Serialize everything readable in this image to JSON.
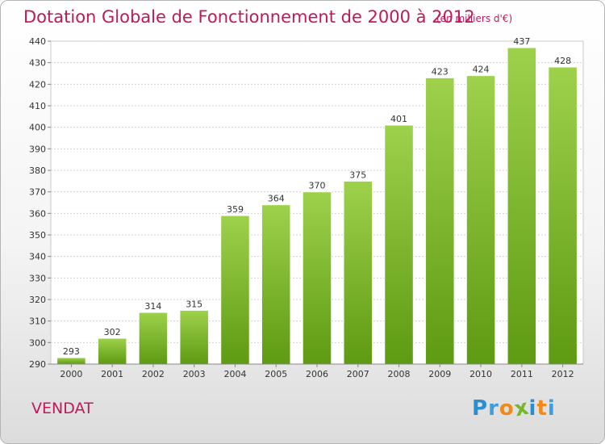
{
  "chart_data": {
    "type": "bar",
    "title": "Dotation Globale de Fonctionnement de 2000 à 2012",
    "subtitle": "(en milliers d'€)",
    "xlabel": "",
    "ylabel": "",
    "categories": [
      "2000",
      "2001",
      "2002",
      "2003",
      "2004",
      "2005",
      "2006",
      "2007",
      "2008",
      "2009",
      "2010",
      "2011",
      "2012"
    ],
    "values": [
      293,
      302,
      314,
      315,
      359,
      364,
      370,
      375,
      401,
      423,
      424,
      437,
      428
    ],
    "ylim": [
      290,
      440
    ],
    "yticks": [
      290,
      300,
      310,
      320,
      330,
      340,
      350,
      360,
      370,
      380,
      390,
      400,
      410,
      420,
      430,
      440
    ],
    "grid": true,
    "bar_color_top": "#9ed14c",
    "bar_color_bottom": "#5e9a12"
  },
  "commune": "VENDAT",
  "logo": {
    "letters": [
      "P",
      "r",
      "o",
      "x",
      "i",
      "t",
      "i"
    ],
    "colors": [
      "#2a8fd0",
      "#3aa0e0",
      "#f08a1c",
      "#76b82a",
      "#2a8fd0",
      "#f08a1c",
      "#3aa0e0"
    ]
  }
}
